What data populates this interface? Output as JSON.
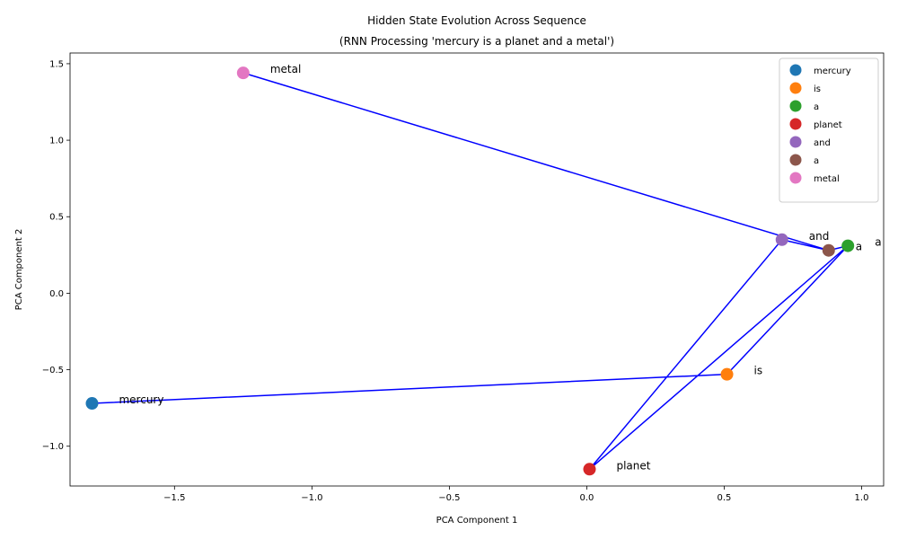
{
  "chart_data": {
    "type": "scatter",
    "title_line1": "Hidden State Evolution Across Sequence",
    "title_line2": "(RNN Processing 'mercury is a planet and a metal')",
    "xlabel": "PCA Component 1",
    "ylabel": "PCA Component 2",
    "xlim": [
      -1.88,
      1.08
    ],
    "ylim": [
      -1.26,
      1.57
    ],
    "x_ticks": [
      -1.5,
      -1.0,
      -0.5,
      0.0,
      0.5,
      1.0
    ],
    "x_tick_labels": [
      "−1.5",
      "−1.0",
      "−0.5",
      "0.0",
      "0.5",
      "1.0"
    ],
    "y_ticks": [
      -1.0,
      -0.5,
      0.0,
      0.5,
      1.0,
      1.5
    ],
    "y_tick_labels": [
      "−1.0",
      "−0.5",
      "0.0",
      "0.5",
      "1.0",
      "1.5"
    ],
    "grid": false,
    "legend_position": "top-right",
    "line_color": "#0000ff",
    "points": [
      {
        "label": "mercury",
        "x": -1.8,
        "y": -0.72,
        "color": "#1f77b4"
      },
      {
        "label": "is",
        "x": 0.51,
        "y": -0.53,
        "color": "#ff7f0e"
      },
      {
        "label": "a",
        "x": 0.95,
        "y": 0.31,
        "color": "#2ca02c"
      },
      {
        "label": "planet",
        "x": 0.01,
        "y": -1.15,
        "color": "#d62728"
      },
      {
        "label": "and",
        "x": 0.71,
        "y": 0.35,
        "color": "#9467bd"
      },
      {
        "label": "a",
        "x": 0.88,
        "y": 0.28,
        "color": "#8c564b"
      },
      {
        "label": "metal",
        "x": -1.25,
        "y": 1.44,
        "color": "#e377c2"
      }
    ],
    "path_order": [
      0,
      1,
      2,
      3,
      4,
      5,
      2,
      3,
      4,
      5,
      6
    ]
  }
}
